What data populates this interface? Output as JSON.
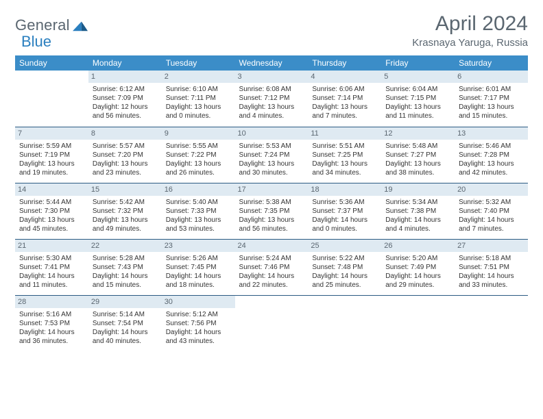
{
  "logo": {
    "text1": "General",
    "text2": "Blue"
  },
  "title": "April 2024",
  "subtitle": "Krasnaya Yaruga, Russia",
  "colors": {
    "header_bg": "#3b8dc8",
    "daynum_bg": "#dfeaf2",
    "rule": "#2a5a82",
    "text_muted": "#5a6670",
    "logo_blue": "#2a7fbf"
  },
  "weekdays": [
    "Sunday",
    "Monday",
    "Tuesday",
    "Wednesday",
    "Thursday",
    "Friday",
    "Saturday"
  ],
  "first_day_index": 1,
  "days_in_month": 30,
  "days": {
    "1": {
      "sunrise": "6:12 AM",
      "sunset": "7:09 PM",
      "daylight": "12 hours and 56 minutes."
    },
    "2": {
      "sunrise": "6:10 AM",
      "sunset": "7:11 PM",
      "daylight": "13 hours and 0 minutes."
    },
    "3": {
      "sunrise": "6:08 AM",
      "sunset": "7:12 PM",
      "daylight": "13 hours and 4 minutes."
    },
    "4": {
      "sunrise": "6:06 AM",
      "sunset": "7:14 PM",
      "daylight": "13 hours and 7 minutes."
    },
    "5": {
      "sunrise": "6:04 AM",
      "sunset": "7:15 PM",
      "daylight": "13 hours and 11 minutes."
    },
    "6": {
      "sunrise": "6:01 AM",
      "sunset": "7:17 PM",
      "daylight": "13 hours and 15 minutes."
    },
    "7": {
      "sunrise": "5:59 AM",
      "sunset": "7:19 PM",
      "daylight": "13 hours and 19 minutes."
    },
    "8": {
      "sunrise": "5:57 AM",
      "sunset": "7:20 PM",
      "daylight": "13 hours and 23 minutes."
    },
    "9": {
      "sunrise": "5:55 AM",
      "sunset": "7:22 PM",
      "daylight": "13 hours and 26 minutes."
    },
    "10": {
      "sunrise": "5:53 AM",
      "sunset": "7:24 PM",
      "daylight": "13 hours and 30 minutes."
    },
    "11": {
      "sunrise": "5:51 AM",
      "sunset": "7:25 PM",
      "daylight": "13 hours and 34 minutes."
    },
    "12": {
      "sunrise": "5:48 AM",
      "sunset": "7:27 PM",
      "daylight": "13 hours and 38 minutes."
    },
    "13": {
      "sunrise": "5:46 AM",
      "sunset": "7:28 PM",
      "daylight": "13 hours and 42 minutes."
    },
    "14": {
      "sunrise": "5:44 AM",
      "sunset": "7:30 PM",
      "daylight": "13 hours and 45 minutes."
    },
    "15": {
      "sunrise": "5:42 AM",
      "sunset": "7:32 PM",
      "daylight": "13 hours and 49 minutes."
    },
    "16": {
      "sunrise": "5:40 AM",
      "sunset": "7:33 PM",
      "daylight": "13 hours and 53 minutes."
    },
    "17": {
      "sunrise": "5:38 AM",
      "sunset": "7:35 PM",
      "daylight": "13 hours and 56 minutes."
    },
    "18": {
      "sunrise": "5:36 AM",
      "sunset": "7:37 PM",
      "daylight": "14 hours and 0 minutes."
    },
    "19": {
      "sunrise": "5:34 AM",
      "sunset": "7:38 PM",
      "daylight": "14 hours and 4 minutes."
    },
    "20": {
      "sunrise": "5:32 AM",
      "sunset": "7:40 PM",
      "daylight": "14 hours and 7 minutes."
    },
    "21": {
      "sunrise": "5:30 AM",
      "sunset": "7:41 PM",
      "daylight": "14 hours and 11 minutes."
    },
    "22": {
      "sunrise": "5:28 AM",
      "sunset": "7:43 PM",
      "daylight": "14 hours and 15 minutes."
    },
    "23": {
      "sunrise": "5:26 AM",
      "sunset": "7:45 PM",
      "daylight": "14 hours and 18 minutes."
    },
    "24": {
      "sunrise": "5:24 AM",
      "sunset": "7:46 PM",
      "daylight": "14 hours and 22 minutes."
    },
    "25": {
      "sunrise": "5:22 AM",
      "sunset": "7:48 PM",
      "daylight": "14 hours and 25 minutes."
    },
    "26": {
      "sunrise": "5:20 AM",
      "sunset": "7:49 PM",
      "daylight": "14 hours and 29 minutes."
    },
    "27": {
      "sunrise": "5:18 AM",
      "sunset": "7:51 PM",
      "daylight": "14 hours and 33 minutes."
    },
    "28": {
      "sunrise": "5:16 AM",
      "sunset": "7:53 PM",
      "daylight": "14 hours and 36 minutes."
    },
    "29": {
      "sunrise": "5:14 AM",
      "sunset": "7:54 PM",
      "daylight": "14 hours and 40 minutes."
    },
    "30": {
      "sunrise": "5:12 AM",
      "sunset": "7:56 PM",
      "daylight": "14 hours and 43 minutes."
    }
  },
  "labels": {
    "sunrise": "Sunrise:",
    "sunset": "Sunset:",
    "daylight": "Daylight:"
  }
}
